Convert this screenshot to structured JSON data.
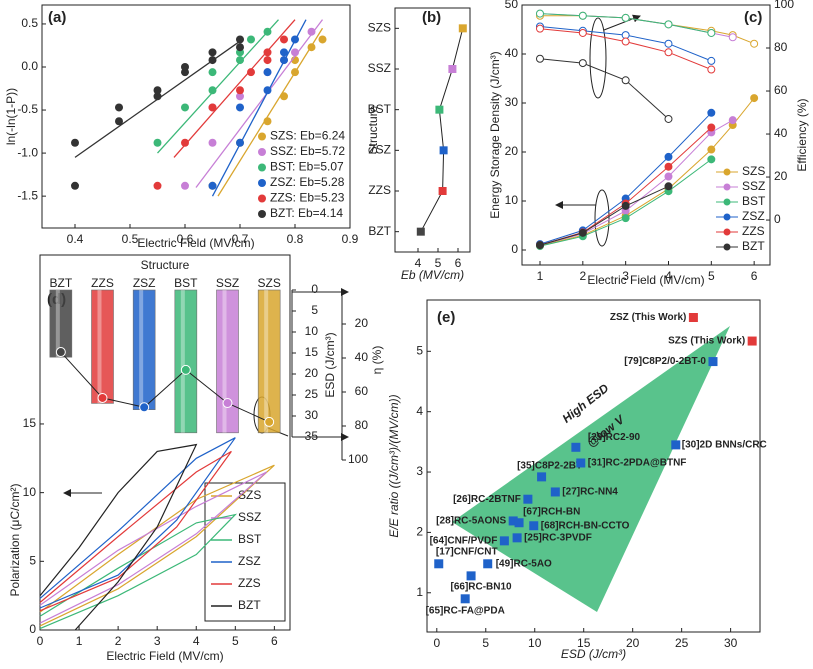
{
  "chart_data": [
    {
      "type": "scatter",
      "panel_label": "(a)",
      "x_label": "Electric Field (MV/cm)",
      "y_label": "ln(-ln(1-P))",
      "xlim": [
        0.34,
        0.9
      ],
      "xticks": [
        0.4,
        0.5,
        0.6,
        0.7,
        0.8,
        0.9
      ],
      "ylim": [
        -1.87,
        0.72
      ],
      "yticks": [
        0.5,
        {
          "value": 0,
          "label": "0.0"
        },
        -0.5,
        {
          "value": -1,
          "label": "-1.0"
        },
        -1.5
      ],
      "legend": "lower right",
      "series": [
        {
          "name": "SZS: Eb=6.24",
          "color": "#d9a62e",
          "x": [
            0.65,
            0.7,
            0.75,
            0.78,
            0.8,
            0.8,
            0.83,
            0.85
          ],
          "y": [
            -1.38,
            -0.88,
            -0.63,
            -0.34,
            -0.06,
            0.08,
            0.23,
            0.32
          ],
          "fit_x": [
            0.66,
            0.85
          ],
          "fit_y": [
            -1.5,
            0.45
          ]
        },
        {
          "name": "SSZ: Eb=5.72",
          "color": "#c77fd6",
          "x": [
            0.6,
            0.65,
            0.65,
            0.7,
            0.75,
            0.78,
            0.8,
            0.83
          ],
          "y": [
            -1.38,
            -0.88,
            -0.47,
            -0.34,
            -0.06,
            0.08,
            0.17,
            0.41
          ],
          "fit_x": [
            0.62,
            0.85
          ],
          "fit_y": [
            -1.4,
            0.55
          ]
        },
        {
          "name": "BST: Eb=5.07",
          "color": "#3cb878",
          "x": [
            0.55,
            0.6,
            0.65,
            0.65,
            0.7,
            0.7,
            0.72,
            0.75
          ],
          "y": [
            -0.88,
            -0.47,
            -0.27,
            -0.06,
            0.08,
            0.17,
            0.32,
            0.41
          ],
          "fit_x": [
            0.55,
            0.77
          ],
          "fit_y": [
            -1.0,
            0.55
          ]
        },
        {
          "name": "ZSZ: Eb=5.28",
          "color": "#1f62c9",
          "x": [
            0.65,
            0.7,
            0.7,
            0.75,
            0.75,
            0.78,
            0.78,
            0.8
          ],
          "y": [
            -1.38,
            -0.88,
            -0.47,
            -0.27,
            -0.06,
            0.08,
            0.17,
            0.32
          ],
          "fit_x": [
            0.65,
            0.82
          ],
          "fit_y": [
            -1.5,
            0.55
          ]
        },
        {
          "name": "ZZS: Eb=5.23",
          "color": "#e23a3a",
          "x": [
            0.55,
            0.6,
            0.65,
            0.7,
            0.72,
            0.75,
            0.75,
            0.78
          ],
          "y": [
            -1.38,
            -0.88,
            -0.47,
            -0.27,
            -0.06,
            0.08,
            0.17,
            0.32
          ],
          "fit_x": [
            0.58,
            0.8
          ],
          "fit_y": [
            -1.05,
            0.55
          ]
        },
        {
          "name": "BZT: Eb=4.14",
          "color": "#333333",
          "x": [
            0.4,
            0.4,
            0.48,
            0.48,
            0.55,
            0.55,
            0.6,
            0.6,
            0.65,
            0.65,
            0.7,
            0.7
          ],
          "y": [
            -1.38,
            -0.88,
            -0.63,
            -0.47,
            -0.34,
            -0.27,
            -0.06,
            0.0,
            0.08,
            0.17,
            0.23,
            0.32
          ],
          "fit_x": [
            0.4,
            0.7
          ],
          "fit_y": [
            -1.05,
            0.3
          ]
        }
      ]
    },
    {
      "type": "hline",
      "panel_label": "(b)",
      "x_label": "Eb (MV/cm)",
      "y_label": "Structure",
      "categories": [
        "BZT",
        "ZZS",
        "ZSZ",
        "BST",
        "SSZ",
        "SZS"
      ],
      "values": [
        4.14,
        5.23,
        5.28,
        5.07,
        5.72,
        6.24
      ],
      "colors": [
        "#444444",
        "#e23a3a",
        "#1f62c9",
        "#3cb878",
        "#c77fd6",
        "#d9a62e"
      ],
      "xlim": [
        2.85,
        6.6
      ],
      "xticks": [
        4,
        5,
        6
      ]
    },
    {
      "type": "dual_line",
      "panel_label": "(c)",
      "x_label": "Electric Field (MV/cm)",
      "y_label": "Energy Storage Density (J/cm³)",
      "y2_label": "Efficiency (%)",
      "x": [
        1,
        2,
        3,
        4,
        5,
        5.5,
        6
      ],
      "xlim": [
        0.58,
        6.37
      ],
      "xticks": [
        1,
        2,
        3,
        4,
        5,
        6
      ],
      "ylim": [
        -3.06,
        50
      ],
      "yticks": [
        0,
        10,
        20,
        30,
        40,
        50
      ],
      "y2lim": [
        -20.9,
        100
      ],
      "y2ticks": [
        0,
        20,
        40,
        60,
        80,
        100
      ],
      "legend": "lower right",
      "series": [
        {
          "name": "SZS",
          "color": "#d9a62e",
          "values": [
            0.9,
            3,
            7,
            12.5,
            20.5,
            25.5,
            31
          ],
          "efficiency": [
            95,
            95,
            94,
            91,
            88,
            86,
            82
          ]
        },
        {
          "name": "SSZ",
          "color": "#c77fd6",
          "values": [
            1,
            3.3,
            8,
            15,
            24,
            26.5,
            null
          ],
          "efficiency": [
            96,
            95,
            94,
            91,
            87,
            85,
            null
          ]
        },
        {
          "name": "BST",
          "color": "#3cb878",
          "values": [
            0.8,
            2.8,
            6.5,
            12,
            18.5,
            null,
            null
          ],
          "efficiency": [
            96,
            95,
            94,
            91,
            87,
            null,
            null
          ]
        },
        {
          "name": "ZSZ",
          "color": "#1f62c9",
          "values": [
            1.2,
            4,
            10.5,
            19,
            28,
            null,
            null
          ],
          "efficiency": [
            90,
            88,
            86,
            82,
            74,
            null,
            null
          ]
        },
        {
          "name": "ZZS",
          "color": "#e23a3a",
          "values": [
            1,
            3.6,
            9.5,
            17,
            25,
            null,
            null
          ],
          "efficiency": [
            89,
            87,
            83,
            78,
            70,
            null,
            null
          ]
        },
        {
          "name": "BZT",
          "color": "#333333",
          "values": [
            1,
            3.5,
            9,
            13,
            null,
            null,
            null
          ],
          "efficiency": [
            75,
            73,
            65,
            47,
            null,
            null,
            null
          ]
        }
      ]
    },
    {
      "type": "composite",
      "panel_label": "(d)",
      "title": "Structure",
      "categories": [
        "BZT",
        "ZZS",
        "ZSZ",
        "BST",
        "SSZ",
        "SZS"
      ],
      "colors": [
        "#444444",
        "#e23a3a",
        "#1f62c9",
        "#3cb878",
        "#c77fd6",
        "#d9a62e"
      ],
      "esd": [
        16,
        27,
        28.5,
        34,
        34,
        34
      ],
      "efficiency": [
        36.5,
        63.5,
        69,
        47,
        66.5,
        77.6
      ],
      "esd_label": "ESD (J/cm³)",
      "esd_lim": [
        0,
        35
      ],
      "esd_ticks": [
        0,
        5,
        10,
        15,
        20,
        25,
        30,
        35
      ],
      "eta_label": "η (%)",
      "eta_lim": [
        0,
        100
      ],
      "eta_ticks": [
        20,
        40,
        60,
        80,
        100
      ],
      "x_label": "Electric Field (MV/cm)",
      "y_label": "Polarization (μC/cm²)",
      "xlim": [
        0,
        6.4
      ],
      "xticks": [
        0,
        1,
        2,
        3,
        4,
        5,
        6
      ],
      "ylim": [
        0,
        27.3
      ],
      "yticks": [
        0,
        5,
        10,
        15
      ],
      "loops": [
        {
          "name": "SZS",
          "color": "#d9a62e",
          "x": [
            0,
            2,
            4,
            6,
            4,
            2,
            0
          ],
          "y": [
            0.3,
            3,
            6.8,
            12,
            9.5,
            5.5,
            1.3
          ]
        },
        {
          "name": "SSZ",
          "color": "#c77fd6",
          "x": [
            0,
            2,
            4,
            5.8,
            4,
            2,
            0
          ],
          "y": [
            0.5,
            3.3,
            7,
            11.5,
            9,
            5.8,
            1.8
          ]
        },
        {
          "name": "BST",
          "color": "#3cb878",
          "x": [
            0,
            2,
            4,
            5,
            4,
            2,
            0
          ],
          "y": [
            0.1,
            2.5,
            5.5,
            8.4,
            7.8,
            4.5,
            1.0
          ]
        },
        {
          "name": "ZSZ",
          "color": "#1f62c9",
          "x": [
            0,
            2,
            3.5,
            5,
            4,
            2,
            0
          ],
          "y": [
            1.6,
            4,
            8,
            14,
            12.5,
            7.2,
            2.3
          ]
        },
        {
          "name": "ZZS",
          "color": "#e23a3a",
          "x": [
            0,
            2,
            3.5,
            4.9,
            4,
            2,
            0
          ],
          "y": [
            1.4,
            3.8,
            7.5,
            13,
            11.5,
            6.8,
            2.0
          ]
        },
        {
          "name": "BZT",
          "color": "#222222",
          "x": [
            0.9,
            2,
            3,
            4,
            3,
            2,
            1,
            0
          ],
          "y": [
            0,
            3.5,
            7.5,
            13.5,
            13,
            10,
            6,
            2.5
          ]
        }
      ]
    },
    {
      "type": "labeled_scatter",
      "panel_label": "(e)",
      "x_label": "ESD (J/cm³)",
      "y_label": "E/E ratio ((J/cm³)/(MV/cm))",
      "annotations": [
        "High ESD",
        "@low V"
      ],
      "xlim": [
        -1,
        33
      ],
      "xticks": [
        0,
        5,
        10,
        15,
        20,
        25,
        30
      ],
      "ylim": [
        0.35,
        5.85
      ],
      "yticks": [
        1,
        2,
        3,
        4,
        5
      ],
      "points": [
        {
          "label": "[65]RC-FA@PDA",
          "x": 2.9,
          "y": 0.9,
          "color": "#1f62c9"
        },
        {
          "label": "[66]RC-BN10",
          "x": 3.5,
          "y": 1.28,
          "color": "#1f62c9"
        },
        {
          "label": "[17]CNF/CNT",
          "x": 0.2,
          "y": 1.48,
          "color": "#1f62c9"
        },
        {
          "label": "[49]RC-5AO",
          "x": 5.2,
          "y": 1.48,
          "color": "#1f62c9"
        },
        {
          "label": "[64]CNF/PVDF",
          "x": 6.9,
          "y": 1.86,
          "color": "#1f62c9"
        },
        {
          "label": "[25]RC-3PVDF",
          "x": 8.2,
          "y": 1.91,
          "color": "#1f62c9"
        },
        {
          "label": "[28]RC-5AONS",
          "x": 7.8,
          "y": 2.19,
          "color": "#1f62c9"
        },
        {
          "label": "[67]RCH-BN",
          "x": 8.4,
          "y": 2.16,
          "color": "#1f62c9"
        },
        {
          "label": "[68]RCH-BN-CCTO",
          "x": 9.9,
          "y": 2.11,
          "color": "#1f62c9"
        },
        {
          "label": "[26]RC-2BTNF",
          "x": 9.3,
          "y": 2.55,
          "color": "#1f62c9"
        },
        {
          "label": "[27]RC-NN4",
          "x": 12.1,
          "y": 2.67,
          "color": "#1f62c9"
        },
        {
          "label": "[35]C8P2-2BT",
          "x": 10.7,
          "y": 2.92,
          "color": "#1f62c9"
        },
        {
          "label": "[31]RC-2PDA@BTNF",
          "x": 14.7,
          "y": 3.15,
          "color": "#1f62c9"
        },
        {
          "label": "[29]RC2-90",
          "x": 14.2,
          "y": 3.41,
          "color": "#1f62c9"
        },
        {
          "label": "[30]2D BNNs/CRC",
          "x": 24.4,
          "y": 3.45,
          "color": "#1f62c9"
        },
        {
          "label": "[79]C8P2/0-2BT-0",
          "x": 28.2,
          "y": 4.83,
          "color": "#1f62c9"
        },
        {
          "label": "ZSZ (This Work)",
          "x": 26.2,
          "y": 5.56,
          "color": "#e23a3a"
        },
        {
          "label": "SZS (This Work)",
          "x": 32.2,
          "y": 5.17,
          "color": "#e23a3a"
        }
      ]
    }
  ]
}
